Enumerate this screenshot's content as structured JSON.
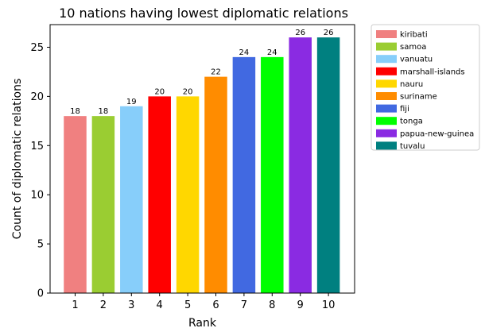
{
  "chart_data": {
    "type": "bar",
    "title": "10 nations having lowest diplomatic relations",
    "xlabel": "Rank",
    "ylabel": "Count of diplomatic relations",
    "categories": [
      "1",
      "2",
      "3",
      "4",
      "5",
      "6",
      "7",
      "8",
      "9",
      "10"
    ],
    "values": [
      18,
      18,
      19,
      20,
      20,
      22,
      24,
      24,
      26,
      26
    ],
    "bar_labels": [
      "18",
      "18",
      "19",
      "20",
      "20",
      "22",
      "24",
      "24",
      "26",
      "26"
    ],
    "legend": [
      "kiribati",
      "samoa",
      "vanuatu",
      "marshall-islands",
      "nauru",
      "suriname",
      "fiji",
      "tonga",
      "papua-new-guinea",
      "tuvalu"
    ],
    "colors": [
      "#f08080",
      "#9acd32",
      "#87cefa",
      "#ff0000",
      "#ffd700",
      "#ff8c00",
      "#4169e1",
      "#00ff00",
      "#8a2be2",
      "#008080"
    ],
    "ylim": [
      0,
      27.3
    ],
    "yticks": [
      0,
      5,
      10,
      15,
      20,
      25
    ],
    "ytick_labels": [
      "0",
      "5",
      "10",
      "15",
      "20",
      "25"
    ],
    "legend_position": "outside-right-top",
    "grid": false
  }
}
